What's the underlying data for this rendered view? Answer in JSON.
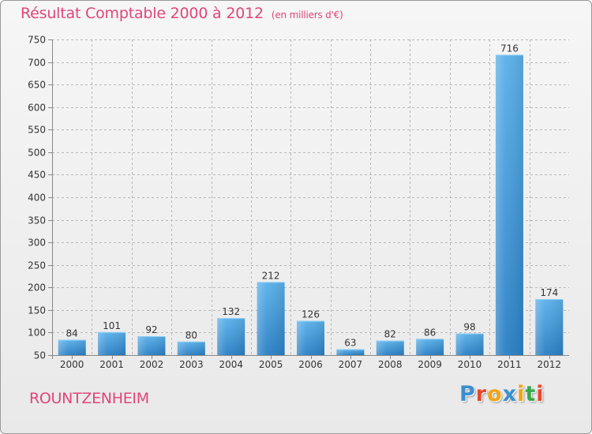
{
  "header": {
    "title": "Résultat Comptable 2000 à 2012",
    "subtitle": "(en milliers d'€)"
  },
  "footer": {
    "place": "ROUNTZENHEIM"
  },
  "logo": {
    "text": "Proxiti",
    "letters": [
      {
        "ch": "P",
        "color": "#3a8fd0"
      },
      {
        "ch": "r",
        "color": "#e8462e"
      },
      {
        "ch": "o",
        "color": "#f2a413"
      },
      {
        "ch": "x",
        "color": "#3a8fd0"
      },
      {
        "ch": "i",
        "color": "#f2a413"
      },
      {
        "ch": "t",
        "color": "#38a84a"
      },
      {
        "ch": "i",
        "color": "#e8462e"
      }
    ]
  },
  "colors": {
    "accent": "#e0467a",
    "bar_light": "#5ab0ea",
    "bar_dark": "#2a7fc4",
    "grid": "#b8b8b8"
  },
  "chart_data": {
    "type": "bar",
    "title": "Résultat Comptable 2000 à 2012",
    "subtitle": "(en milliers d'€)",
    "xlabel": "",
    "ylabel": "",
    "categories": [
      "2000",
      "2001",
      "2002",
      "2003",
      "2004",
      "2005",
      "2006",
      "2007",
      "2008",
      "2009",
      "2010",
      "2011",
      "2012"
    ],
    "values": [
      84,
      101,
      92,
      80,
      132,
      212,
      126,
      63,
      82,
      86,
      98,
      716,
      174
    ],
    "ylim": [
      50,
      750
    ],
    "yticks": [
      50,
      100,
      150,
      200,
      250,
      300,
      350,
      400,
      450,
      500,
      550,
      600,
      650,
      700,
      750
    ],
    "grid": true,
    "legend": false
  }
}
